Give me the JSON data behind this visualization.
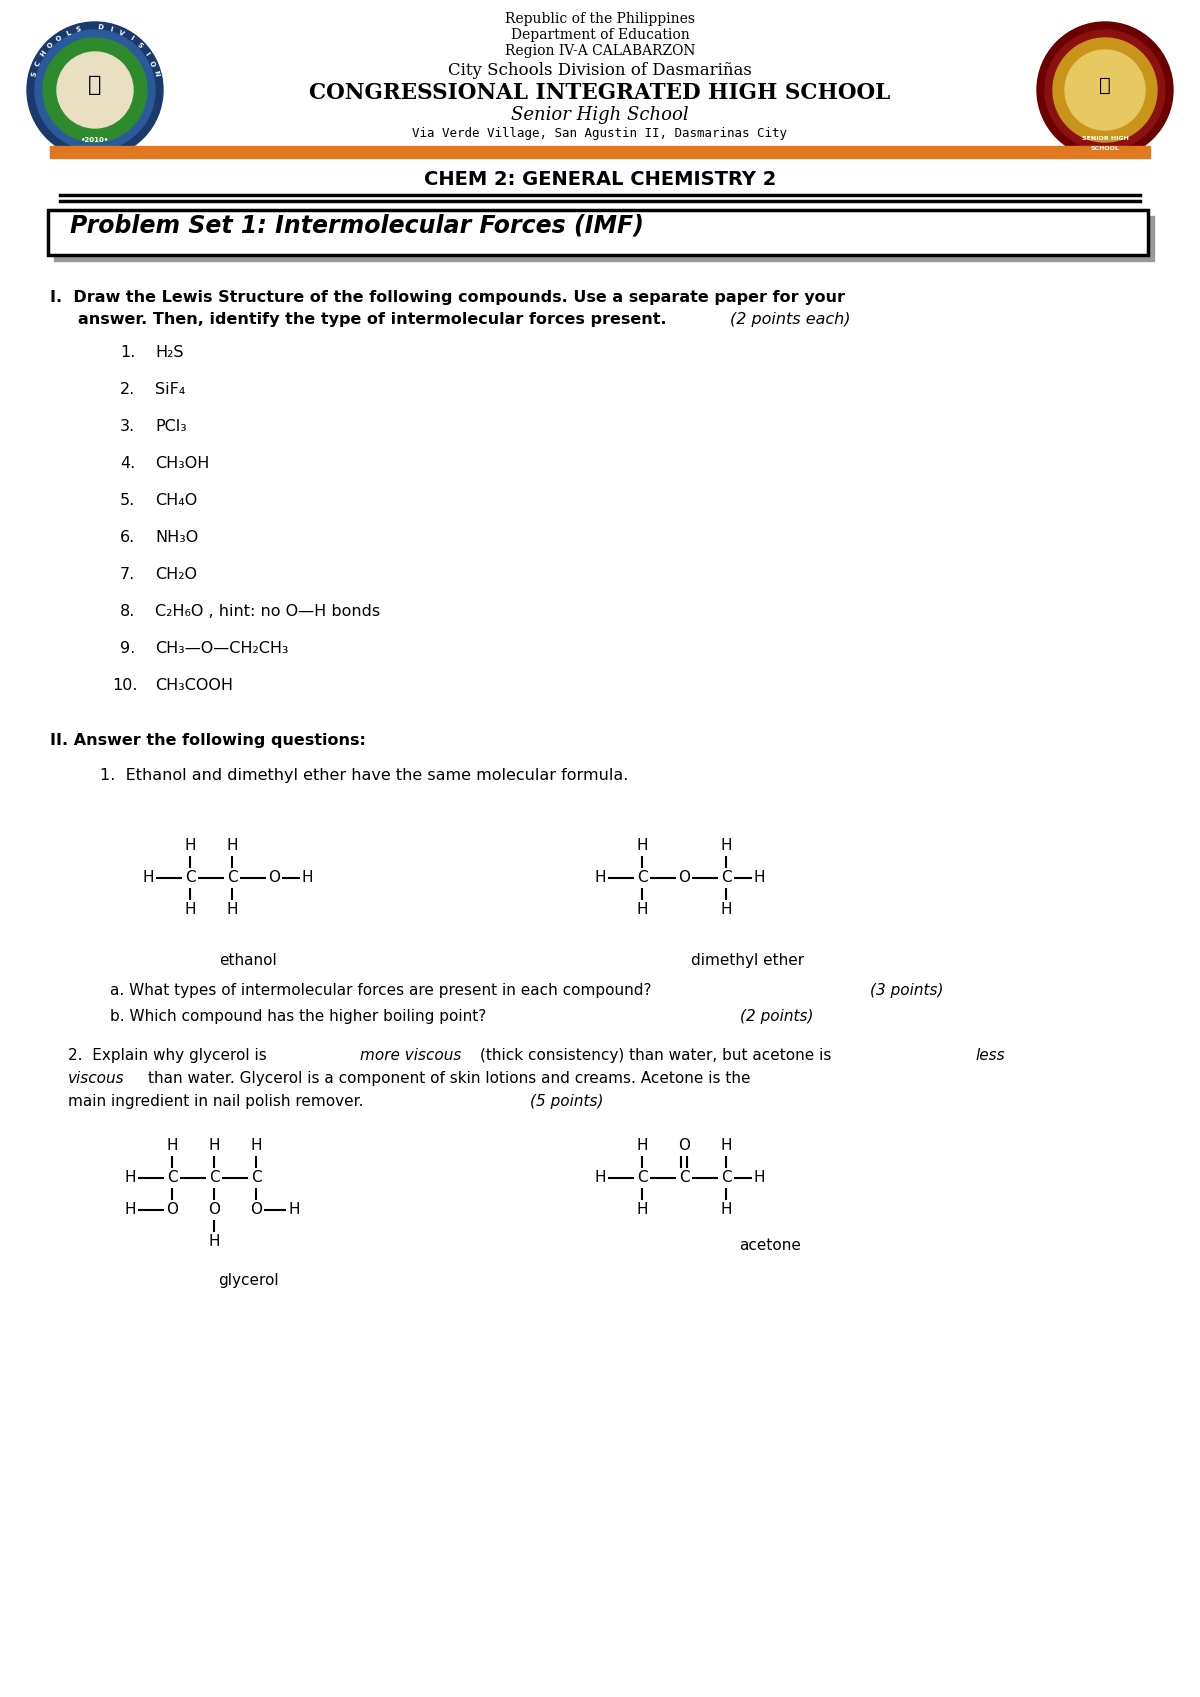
{
  "header_line1": "Republic of the Philippines",
  "header_line2": "Department of Education",
  "header_line3": "Region IV-A CALABARZON",
  "header_line4": "City Schools Division of Dasmariñas",
  "header_line5": "CONGRESSIONAL INTEGRATED HIGH SCHOOL",
  "header_line6": "Senior High School",
  "header_line7": "Via Verde Village, San Agustin II, Dasmarinas City",
  "subject_title": "CHEM 2: GENERAL CHEMISTRY 2",
  "problem_set_title": "Problem Set 1: Intermolecular Forces (IMF)",
  "compounds": [
    "H₂S",
    "SiF₄",
    "PCl₃",
    "CH₃OH",
    "CH₄O",
    "NH₃O",
    "CH₂O",
    "C₂H₆O , hint: no O—H bonds",
    "CH₃—O—CH₂CH₃",
    "CH₃COOH"
  ],
  "q1a_points": "(3 points)",
  "q1b_points": "(2 points)",
  "q2_points": "(5 points)",
  "section_I_points": "(2 points each)",
  "bg_color": "#ffffff",
  "orange_bar_color": "#e07820"
}
